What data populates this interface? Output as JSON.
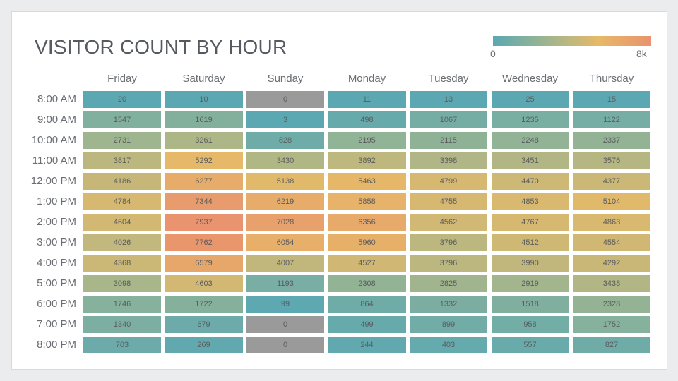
{
  "colors": {
    "background": "#ebecee",
    "card": "#ffffff",
    "scale": [
      "#5ba8b2",
      "#9cb590",
      "#e6b968",
      "#e9936e"
    ],
    "zero": "#9a9a9a",
    "text": "#555a60"
  },
  "chart_data": {
    "type": "heatmap",
    "title": "VISITOR COUNT BY HOUR",
    "legend": {
      "min_label": "0",
      "max_label": "8k",
      "min": 0,
      "max": 8000,
      "placement": "top-right"
    },
    "columns": [
      "Friday",
      "Saturday",
      "Sunday",
      "Monday",
      "Tuesday",
      "Wednesday",
      "Thursday"
    ],
    "rows": [
      "8:00 AM",
      "9:00 AM",
      "10:00 AM",
      "11:00 AM",
      "12:00 PM",
      "1:00 PM",
      "2:00 PM",
      "3:00 PM",
      "4:00 PM",
      "5:00 PM",
      "6:00 PM",
      "7:00 PM",
      "8:00 PM"
    ],
    "values": [
      [
        20,
        10,
        0,
        11,
        13,
        25,
        15
      ],
      [
        1547,
        1619,
        3,
        498,
        1067,
        1235,
        1122
      ],
      [
        2731,
        3261,
        828,
        2195,
        2115,
        2248,
        2337
      ],
      [
        3817,
        5292,
        3430,
        3892,
        3398,
        3451,
        3576
      ],
      [
        4186,
        6277,
        5138,
        5463,
        4799,
        4470,
        4377
      ],
      [
        4784,
        7344,
        6219,
        5858,
        4755,
        4853,
        5104
      ],
      [
        4604,
        7937,
        7028,
        6356,
        4562,
        4767,
        4863
      ],
      [
        4026,
        7762,
        6054,
        5960,
        3796,
        4512,
        4554
      ],
      [
        4368,
        6579,
        4007,
        4527,
        3796,
        3990,
        4292
      ],
      [
        3098,
        4603,
        1193,
        2308,
        2825,
        2919,
        3438
      ],
      [
        1746,
        1722,
        99,
        864,
        1332,
        1518,
        2328
      ],
      [
        1340,
        679,
        0,
        499,
        899,
        958,
        1752
      ],
      [
        703,
        269,
        0,
        244,
        403,
        557,
        827
      ]
    ]
  }
}
